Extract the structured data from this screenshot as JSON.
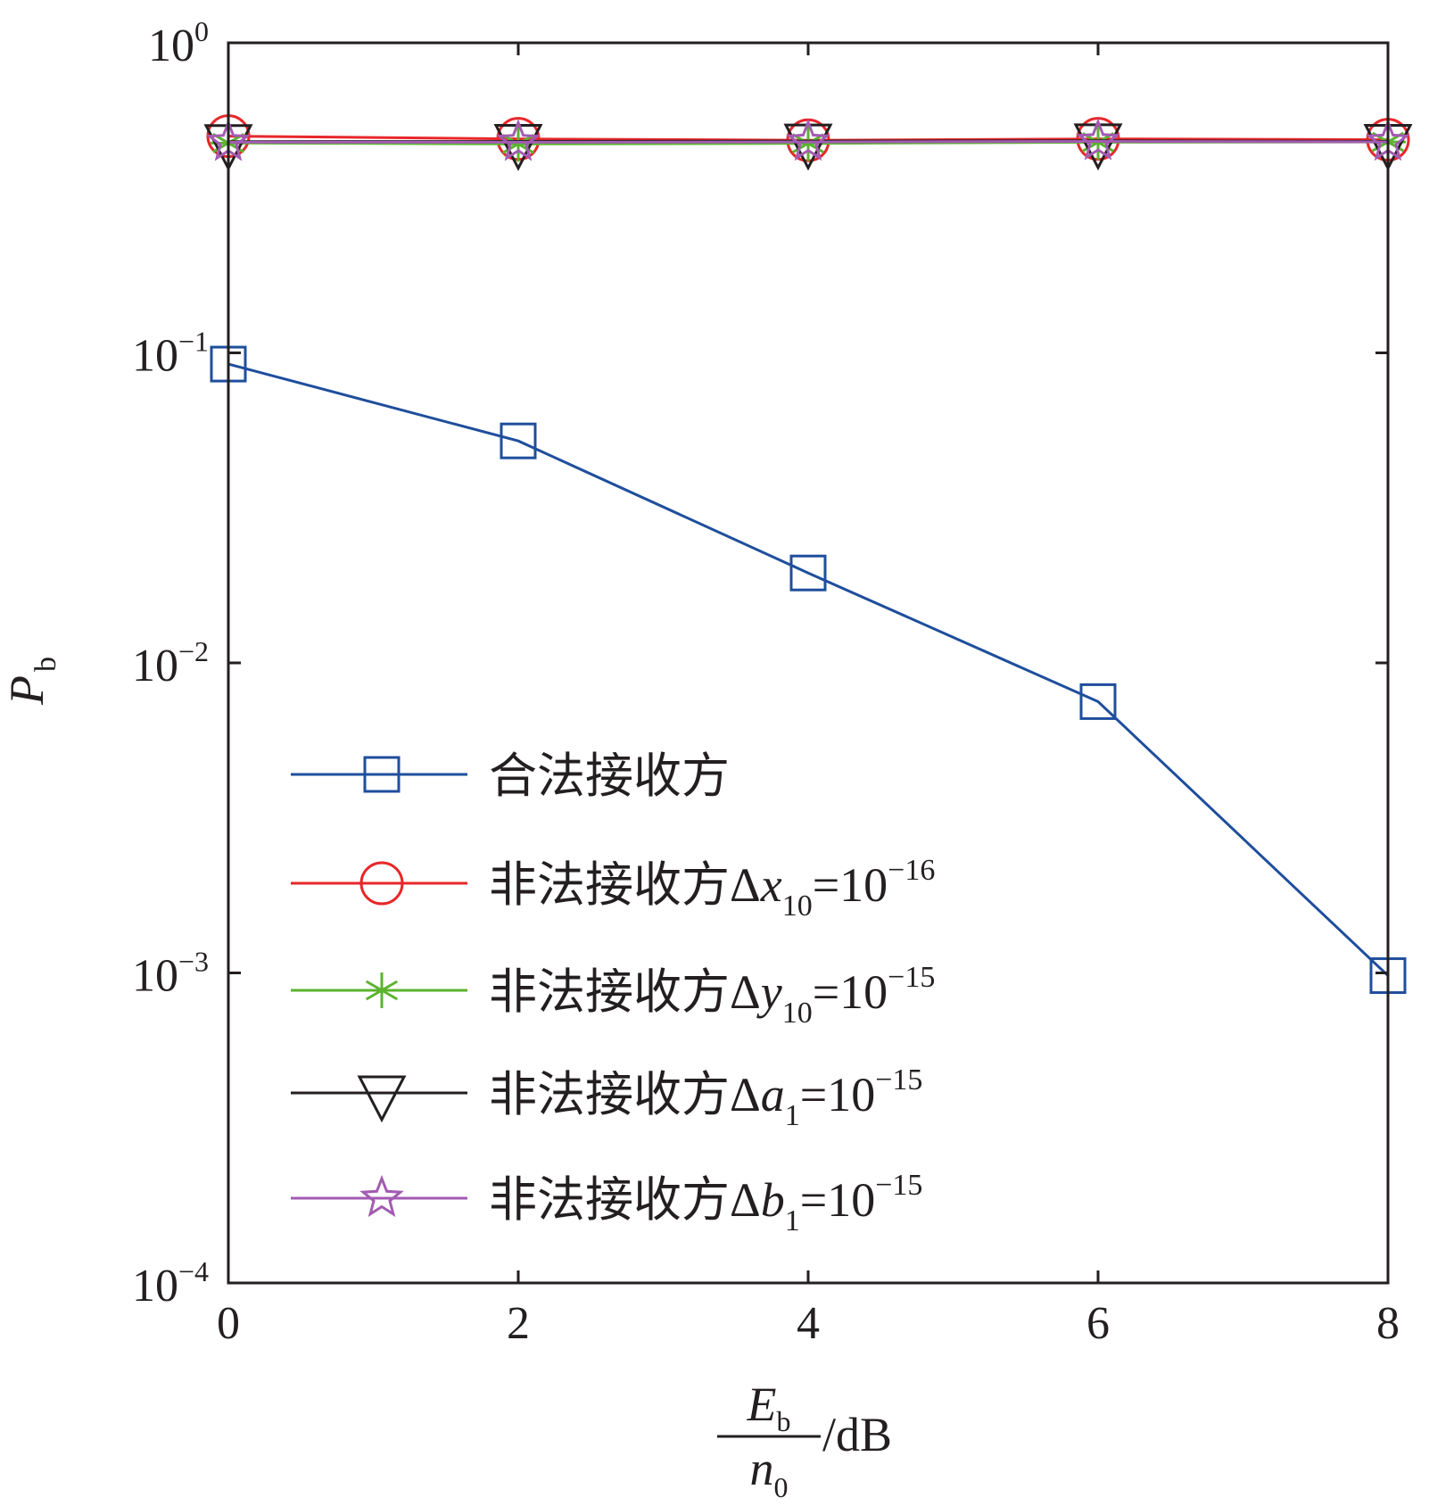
{
  "chart_data": {
    "type": "line",
    "title": "",
    "xlabel": {
      "numerator": "E",
      "numerator_sub": "b",
      "denominator": "n",
      "denominator_sub": "0",
      "unit": "/dB"
    },
    "ylabel": {
      "main": "P",
      "sub": "b"
    },
    "x_scale": "linear",
    "y_scale": "log",
    "xlim": [
      0,
      8
    ],
    "ylim": [
      0.0001,
      1
    ],
    "grid": false,
    "legend_position": "lower-left",
    "x_ticks": [
      {
        "value": 0,
        "label": "0"
      },
      {
        "value": 2,
        "label": "2"
      },
      {
        "value": 4,
        "label": "4"
      },
      {
        "value": 6,
        "label": "6"
      },
      {
        "value": 8,
        "label": "8"
      }
    ],
    "y_ticks": [
      {
        "value": 1,
        "base": "10",
        "exp": "0"
      },
      {
        "value": 0.1,
        "base": "10",
        "exp": "−1"
      },
      {
        "value": 0.01,
        "base": "10",
        "exp": "−2"
      },
      {
        "value": 0.001,
        "base": "10",
        "exp": "−3"
      },
      {
        "value": 0.0001,
        "base": "10",
        "exp": "−4"
      }
    ],
    "x": [
      0,
      2,
      4,
      6,
      8
    ],
    "series": [
      {
        "name": "合法接收方",
        "label_parts": {
          "text": "合法接收方"
        },
        "color": "#1f4e9c",
        "marker": "square",
        "values": [
          0.092,
          0.052,
          0.0195,
          0.0075,
          0.00098
        ]
      },
      {
        "name": "非法接收方Δx10=10−16",
        "label_parts": {
          "text": "非法接收方Δ",
          "var": "x",
          "sub": "10",
          "eq": "=10",
          "exp": "−16"
        },
        "color": "#e8272a",
        "marker": "circle",
        "values": [
          0.5,
          0.49,
          0.485,
          0.49,
          0.487
        ]
      },
      {
        "name": "非法接收方Δy10=10−15",
        "label_parts": {
          "text": "非法接收方Δ",
          "var": "y",
          "sub": "10",
          "eq": "=10",
          "exp": "−15"
        },
        "color": "#5bb32f",
        "marker": "asterisk",
        "values": [
          0.475,
          0.472,
          0.474,
          0.478,
          0.479
        ]
      },
      {
        "name": "非法接收方Δa1=10−15",
        "label_parts": {
          "text": "非法接收方Δ",
          "var": "a",
          "sub": "1",
          "eq": "=10",
          "exp": "−15"
        },
        "color": "#231f20",
        "marker": "triangle-down",
        "values": [
          0.48,
          0.481,
          0.482,
          0.483,
          0.481
        ]
      },
      {
        "name": "非法接收方Δb1=10−15",
        "label_parts": {
          "text": "非法接收方Δ",
          "var": "b",
          "sub": "1",
          "eq": "=10",
          "exp": "−15"
        },
        "color": "#a35bb2",
        "marker": "star",
        "values": [
          0.478,
          0.478,
          0.479,
          0.481,
          0.479
        ]
      }
    ]
  }
}
